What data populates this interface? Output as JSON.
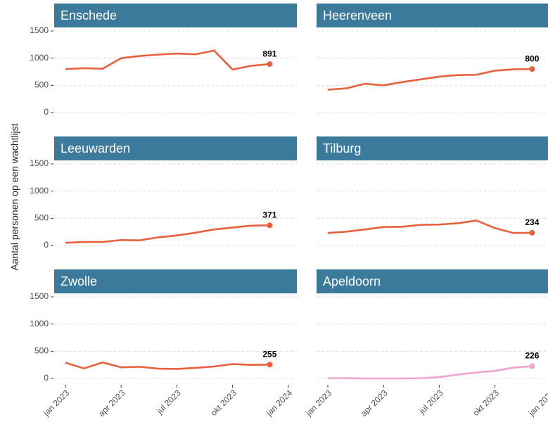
{
  "ylabel": "Aantal personen op een wachtlijst",
  "chart_data": [
    {
      "type": "line",
      "title": "Enschede",
      "x": [
        "2023-01",
        "2023-02",
        "2023-03",
        "2023-04",
        "2023-05",
        "2023-06",
        "2023-07",
        "2023-08",
        "2023-09",
        "2023-10",
        "2023-11",
        "2023-12"
      ],
      "values": [
        800,
        815,
        805,
        1000,
        1040,
        1065,
        1085,
        1070,
        1140,
        790,
        860,
        891
      ],
      "color": "#e8603c",
      "xlim": [
        "2023-01",
        "2024-01"
      ],
      "ylim": [
        0,
        1500
      ],
      "yticks": [
        0,
        500,
        1000,
        1500
      ],
      "grid": true
    },
    {
      "type": "line",
      "title": "Heerenveen",
      "x": [
        "2023-01",
        "2023-02",
        "2023-03",
        "2023-04",
        "2023-05",
        "2023-06",
        "2023-07",
        "2023-08",
        "2023-09",
        "2023-10",
        "2023-11",
        "2023-12"
      ],
      "values": [
        420,
        445,
        530,
        500,
        560,
        610,
        660,
        690,
        695,
        770,
        795,
        800
      ],
      "color": "#e8603c",
      "xlim": [
        "2023-01",
        "2024-01"
      ],
      "ylim": [
        0,
        1500
      ],
      "yticks": [
        0,
        500,
        1000,
        1500
      ],
      "grid": true
    },
    {
      "type": "line",
      "title": "Leeuwarden",
      "x": [
        "2023-01",
        "2023-02",
        "2023-03",
        "2023-04",
        "2023-05",
        "2023-06",
        "2023-07",
        "2023-08",
        "2023-09",
        "2023-10",
        "2023-11",
        "2023-12"
      ],
      "values": [
        50,
        65,
        65,
        100,
        95,
        150,
        185,
        235,
        295,
        330,
        365,
        371
      ],
      "color": "#e8603c",
      "xlim": [
        "2023-01",
        "2024-01"
      ],
      "ylim": [
        0,
        1500
      ],
      "yticks": [
        0,
        500,
        1000,
        1500
      ],
      "grid": true
    },
    {
      "type": "line",
      "title": "Tilburg",
      "x": [
        "2023-01",
        "2023-02",
        "2023-03",
        "2023-04",
        "2023-05",
        "2023-06",
        "2023-07",
        "2023-08",
        "2023-09",
        "2023-10",
        "2023-11",
        "2023-12"
      ],
      "values": [
        230,
        255,
        295,
        340,
        345,
        380,
        385,
        410,
        460,
        320,
        230,
        234
      ],
      "color": "#e8603c",
      "xlim": [
        "2023-01",
        "2024-01"
      ],
      "ylim": [
        0,
        1500
      ],
      "yticks": [
        0,
        500,
        1000,
        1500
      ],
      "grid": true
    },
    {
      "type": "line",
      "title": "Zwolle",
      "x": [
        "2023-01",
        "2023-02",
        "2023-03",
        "2023-04",
        "2023-05",
        "2023-06",
        "2023-07",
        "2023-08",
        "2023-09",
        "2023-10",
        "2023-11",
        "2023-12"
      ],
      "values": [
        290,
        185,
        295,
        205,
        215,
        180,
        175,
        195,
        220,
        265,
        250,
        255
      ],
      "color": "#e8603c",
      "xlim": [
        "2023-01",
        "2024-01"
      ],
      "ylim": [
        0,
        1500
      ],
      "yticks": [
        0,
        500,
        1000,
        1500
      ],
      "grid": true,
      "xticks": [
        {
          "value": "2023-01",
          "label": "jan 2023"
        },
        {
          "value": "2023-04",
          "label": "apr 2023"
        },
        {
          "value": "2023-07",
          "label": "jul 2023"
        },
        {
          "value": "2023-10",
          "label": "okt 2023"
        },
        {
          "value": "2024-01",
          "label": "jan 2024"
        }
      ]
    },
    {
      "type": "line",
      "title": "Apeldoorn",
      "x": [
        "2023-01",
        "2023-02",
        "2023-03",
        "2023-04",
        "2023-05",
        "2023-06",
        "2023-07",
        "2023-08",
        "2023-09",
        "2023-10",
        "2023-11",
        "2023-12"
      ],
      "values": [
        5,
        5,
        0,
        0,
        0,
        5,
        25,
        70,
        110,
        140,
        200,
        226
      ],
      "color": "#f2a3cb",
      "xlim": [
        "2023-01",
        "2024-01"
      ],
      "ylim": [
        0,
        1500
      ],
      "yticks": [
        0,
        500,
        1000,
        1500
      ],
      "grid": true,
      "xticks": [
        {
          "value": "2023-01",
          "label": "jan 2023"
        },
        {
          "value": "2023-04",
          "label": "apr 2023"
        },
        {
          "value": "2023-07",
          "label": "jul 2023"
        },
        {
          "value": "2023-10",
          "label": "okt 2023"
        },
        {
          "value": "2024-01",
          "label": "jan 2024"
        }
      ]
    }
  ]
}
